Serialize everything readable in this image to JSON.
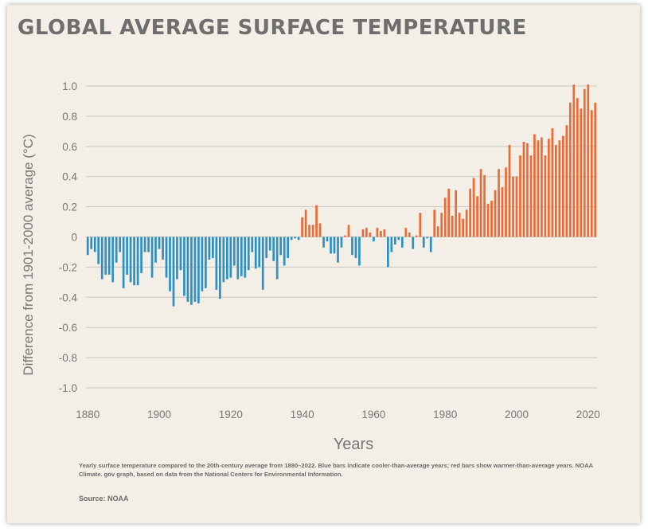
{
  "title": "GLOBAL AVERAGE SURFACE TEMPERATURE",
  "caption": "Yearly surface temperature compared to the 20th-century average from 1880–2022. Blue bars indicate cooler-than-average years; red bars show warmer-than-average years. NOAA Climate. gov graph, based on data from the National Centers for Environmental Information.",
  "source": "Source: NOAA",
  "colors": {
    "cool": "#2d8fc4",
    "warm": "#ed6a36",
    "grid": "#c9c6bf",
    "text": "#777777"
  },
  "chart_data": {
    "type": "bar",
    "xlabel": "Years",
    "ylabel": "Difference from 1901-2000 average (°C)",
    "ylim": [
      -1.0,
      1.0
    ],
    "y_ticks": [
      "1.0",
      "0.8",
      "0.6",
      "0.4",
      "0.2",
      "0",
      "-0.2",
      "-0.4",
      "-0.6",
      "-0.8",
      "-1.0"
    ],
    "x_ticks": [
      "1880",
      "1900",
      "1920",
      "1940",
      "1960",
      "1980",
      "2000",
      "2020"
    ],
    "x_start": 1880,
    "x_end": 2022,
    "values": [
      -0.12,
      -0.08,
      -0.1,
      -0.18,
      -0.28,
      -0.25,
      -0.25,
      -0.3,
      -0.17,
      -0.1,
      -0.34,
      -0.25,
      -0.3,
      -0.32,
      -0.32,
      -0.24,
      -0.1,
      -0.1,
      -0.27,
      -0.17,
      -0.08,
      -0.15,
      -0.27,
      -0.36,
      -0.46,
      -0.28,
      -0.22,
      -0.39,
      -0.43,
      -0.45,
      -0.43,
      -0.44,
      -0.36,
      -0.34,
      -0.15,
      -0.14,
      -0.35,
      -0.41,
      -0.3,
      -0.28,
      -0.27,
      -0.19,
      -0.28,
      -0.26,
      -0.27,
      -0.22,
      -0.1,
      -0.21,
      -0.2,
      -0.35,
      -0.14,
      -0.09,
      -0.16,
      -0.28,
      -0.12,
      -0.19,
      -0.14,
      -0.02,
      -0.01,
      -0.02,
      0.13,
      0.18,
      0.08,
      0.08,
      0.21,
      0.09,
      -0.07,
      -0.03,
      -0.11,
      -0.11,
      -0.17,
      -0.07,
      0.01,
      0.08,
      -0.12,
      -0.14,
      -0.19,
      0.05,
      0.06,
      0.03,
      -0.03,
      0.06,
      0.04,
      0.05,
      -0.2,
      -0.1,
      -0.05,
      -0.02,
      -0.07,
      0.06,
      0.03,
      -0.08,
      0.01,
      0.16,
      -0.07,
      -0.01,
      -0.1,
      0.18,
      0.07,
      0.16,
      0.26,
      0.32,
      0.14,
      0.31,
      0.16,
      0.12,
      0.18,
      0.32,
      0.39,
      0.27,
      0.45,
      0.41,
      0.22,
      0.24,
      0.31,
      0.45,
      0.33,
      0.46,
      0.61,
      0.4,
      0.4,
      0.54,
      0.63,
      0.62,
      0.54,
      0.68,
      0.64,
      0.66,
      0.54,
      0.65,
      0.72,
      0.61,
      0.64,
      0.67,
      0.74,
      0.89,
      1.01,
      0.92,
      0.85,
      0.98,
      1.01,
      0.84,
      0.89
    ]
  }
}
